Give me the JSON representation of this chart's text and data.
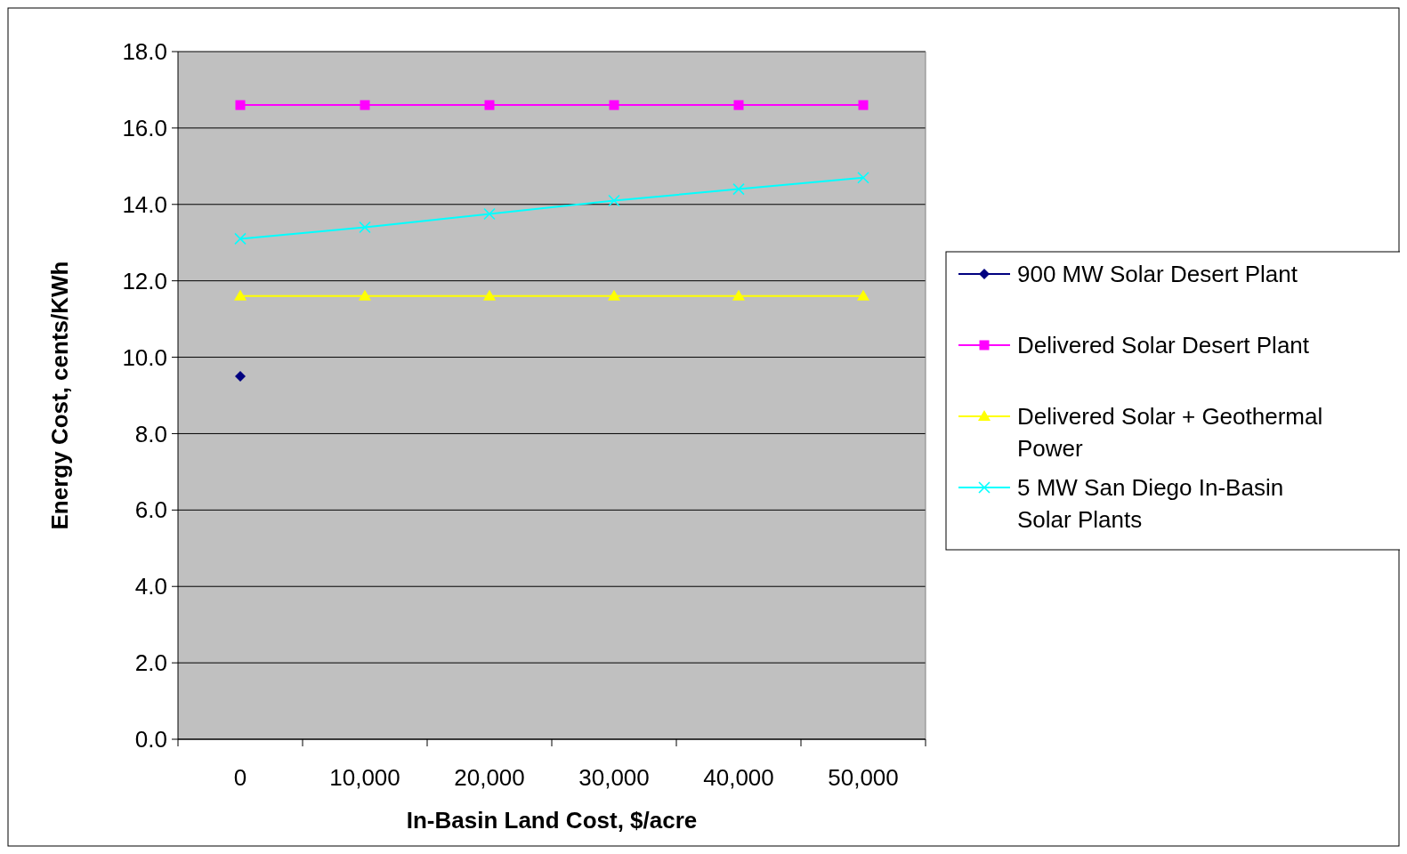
{
  "chart_data": {
    "type": "line",
    "xlabel": "In-Basin Land Cost, $/acre",
    "ylabel": "Energy Cost, cents/KWh",
    "categories": [
      "0",
      "10,000",
      "20,000",
      "30,000",
      "40,000",
      "50,000"
    ],
    "ylim": [
      0,
      18
    ],
    "yticks": [
      {
        "value": 0,
        "label": "0.0"
      },
      {
        "value": 2,
        "label": "2.0"
      },
      {
        "value": 4,
        "label": "4.0"
      },
      {
        "value": 6,
        "label": "6.0"
      },
      {
        "value": 8,
        "label": "8.0"
      },
      {
        "value": 10,
        "label": "10.0"
      },
      {
        "value": 12,
        "label": "12.0"
      },
      {
        "value": 14,
        "label": "14.0"
      },
      {
        "value": 16,
        "label": "16.0"
      },
      {
        "value": 18,
        "label": "18.0"
      }
    ],
    "grid": "y",
    "legend": "right",
    "series": [
      {
        "name": "900 MW Solar Desert Plant",
        "color": "#000080",
        "marker": "diamond",
        "values": [
          9.5,
          null,
          null,
          null,
          null,
          null
        ]
      },
      {
        "name": "Delivered Solar Desert Plant",
        "color": "#ff00ff",
        "marker": "square",
        "values": [
          16.6,
          16.6,
          16.6,
          16.6,
          16.6,
          16.6
        ]
      },
      {
        "name": "Delivered Solar + Geothermal Power",
        "color": "#ffff00",
        "marker": "triangle",
        "values": [
          11.6,
          11.6,
          11.6,
          11.6,
          11.6,
          11.6
        ]
      },
      {
        "name": "5 MW San Diego In-Basin Solar Plants",
        "color": "#00ffff",
        "marker": "cross",
        "values": [
          13.1,
          13.4,
          13.75,
          14.1,
          14.4,
          14.7
        ]
      }
    ]
  }
}
